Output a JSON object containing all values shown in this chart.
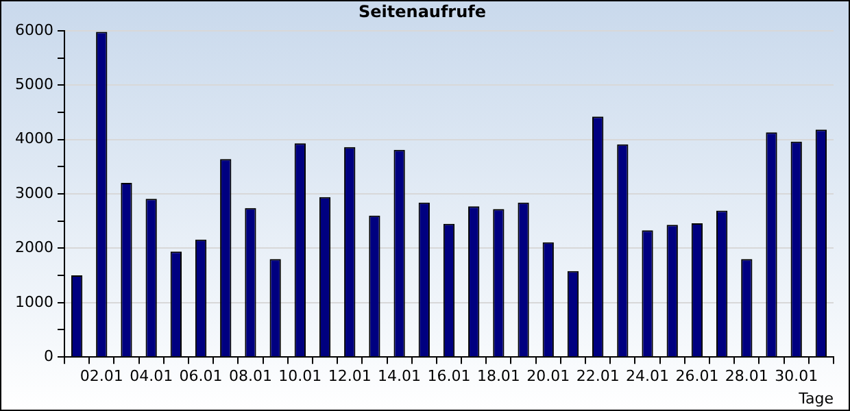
{
  "chart_data": {
    "type": "bar",
    "title": "Seitenaufrufe",
    "xlabel": "Tage",
    "categories": [
      null,
      "02.01",
      null,
      "04.01",
      null,
      "06.01",
      null,
      "08.01",
      null,
      "10.01",
      null,
      "12.01",
      null,
      "14.01",
      null,
      "16.01",
      null,
      "18.01",
      null,
      "20.01",
      null,
      "22.01",
      null,
      "24.01",
      null,
      "26.01",
      null,
      "28.01",
      null,
      "30.01",
      null
    ],
    "values": [
      1500,
      5980,
      3200,
      2910,
      1940,
      2160,
      3640,
      2740,
      1800,
      3930,
      2940,
      3860,
      2600,
      3810,
      2840,
      2450,
      2770,
      2720,
      2840,
      2110,
      1580,
      4420,
      3910,
      2330,
      2430,
      2460,
      2690,
      1800,
      4130,
      3960,
      4180
    ],
    "color": "#000080",
    "ylim": [
      0,
      6000
    ],
    "yticks": [
      0,
      {
        "value": 500,
        "label": null
      },
      1000,
      {
        "value": 1500,
        "label": null
      },
      2000,
      {
        "value": 2500,
        "label": null
      },
      3000,
      {
        "value": 3500,
        "label": null
      },
      4000,
      {
        "value": 4500,
        "label": null
      },
      5000,
      {
        "value": 5500,
        "label": null
      },
      6000
    ],
    "grid": "y",
    "legend": false
  }
}
